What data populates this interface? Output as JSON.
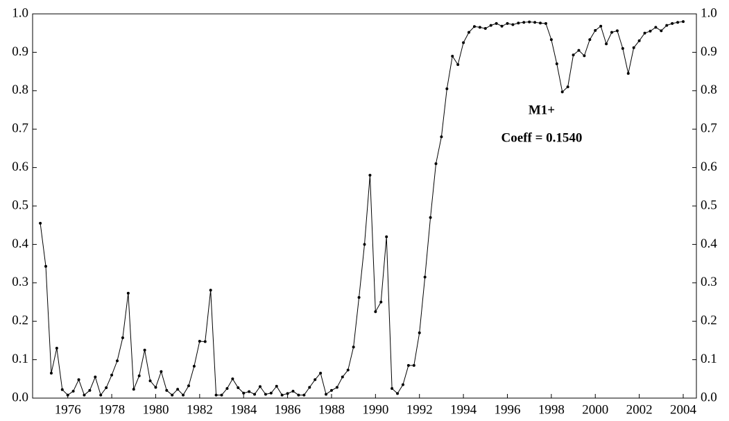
{
  "chart_data": {
    "type": "line",
    "annotations": [
      "M1+",
      "Coeff = 0.1540"
    ],
    "x": [
      1974.75,
      1975,
      1975.25,
      1975.5,
      1975.75,
      1976,
      1976.25,
      1976.5,
      1976.75,
      1977,
      1977.25,
      1977.5,
      1977.75,
      1978,
      1978.25,
      1978.5,
      1978.75,
      1979,
      1979.25,
      1979.5,
      1979.75,
      1980,
      1980.25,
      1980.5,
      1980.75,
      1981,
      1981.25,
      1981.5,
      1981.75,
      1982,
      1982.25,
      1982.5,
      1982.75,
      1983,
      1983.25,
      1983.5,
      1983.75,
      1984,
      1984.25,
      1984.5,
      1984.75,
      1985,
      1985.25,
      1985.5,
      1985.75,
      1986,
      1986.25,
      1986.5,
      1986.75,
      1987,
      1987.25,
      1987.5,
      1987.75,
      1988,
      1988.25,
      1988.5,
      1988.75,
      1989,
      1989.25,
      1989.5,
      1989.75,
      1990,
      1990.25,
      1990.5,
      1990.75,
      1991,
      1991.25,
      1991.5,
      1991.75,
      1992,
      1992.25,
      1992.5,
      1992.75,
      1993,
      1993.25,
      1993.5,
      1993.75,
      1994,
      1994.25,
      1994.5,
      1994.75,
      1995,
      1995.25,
      1995.5,
      1995.75,
      1996,
      1996.25,
      1996.5,
      1996.75,
      1997,
      1997.25,
      1997.5,
      1997.75,
      1998,
      1998.25,
      1998.5,
      1998.75,
      1999,
      1999.25,
      1999.5,
      1999.75,
      2000,
      2000.25,
      2000.5,
      2000.75,
      2001,
      2001.25,
      2001.5,
      2001.75,
      2002,
      2002.25,
      2002.5,
      2002.75,
      2003,
      2003.25,
      2003.5,
      2003.75,
      2004
    ],
    "series": [
      {
        "color": "#000000",
        "values": [
          0.455,
          0.343,
          0.065,
          0.13,
          0.022,
          0.008,
          0.018,
          0.048,
          0.008,
          0.02,
          0.055,
          0.008,
          0.027,
          0.06,
          0.097,
          0.157,
          0.273,
          0.023,
          0.058,
          0.125,
          0.045,
          0.028,
          0.069,
          0.02,
          0.008,
          0.023,
          0.008,
          0.032,
          0.083,
          0.148,
          0.147,
          0.281,
          0.008,
          0.008,
          0.025,
          0.05,
          0.027,
          0.013,
          0.017,
          0.01,
          0.03,
          0.01,
          0.013,
          0.031,
          0.008,
          0.012,
          0.018,
          0.008,
          0.008,
          0.028,
          0.048,
          0.065,
          0.01,
          0.02,
          0.028,
          0.055,
          0.073,
          0.133,
          0.262,
          0.4,
          0.58,
          0.225,
          0.25,
          0.42,
          0.025,
          0.012,
          0.035,
          0.085,
          0.085,
          0.17,
          0.315,
          0.47,
          0.61,
          0.68,
          0.805,
          0.89,
          0.868,
          0.925,
          0.952,
          0.967,
          0.965,
          0.962,
          0.97,
          0.975,
          0.968,
          0.975,
          0.972,
          0.976,
          0.978,
          0.979,
          0.978,
          0.976,
          0.975,
          0.933,
          0.87,
          0.797,
          0.81,
          0.893,
          0.905,
          0.891,
          0.933,
          0.957,
          0.968,
          0.922,
          0.952,
          0.956,
          0.91,
          0.845,
          0.912,
          0.93,
          0.95,
          0.955,
          0.965,
          0.956,
          0.97,
          0.975,
          0.978,
          0.98
        ]
      }
    ],
    "xlim": [
      1974.4,
      2004.6
    ],
    "xticks": [
      1976,
      1978,
      1980,
      1982,
      1984,
      1986,
      1988,
      1990,
      1992,
      1994,
      1996,
      1998,
      2000,
      2002,
      2004
    ],
    "ylim": [
      0,
      1
    ],
    "yticks": [
      {
        "value": 0,
        "label": "0.0"
      },
      0.1,
      0.2,
      0.3,
      0.4,
      0.5,
      0.6,
      0.7,
      0.8,
      0.9,
      {
        "value": 1,
        "label": "1.0"
      }
    ]
  }
}
